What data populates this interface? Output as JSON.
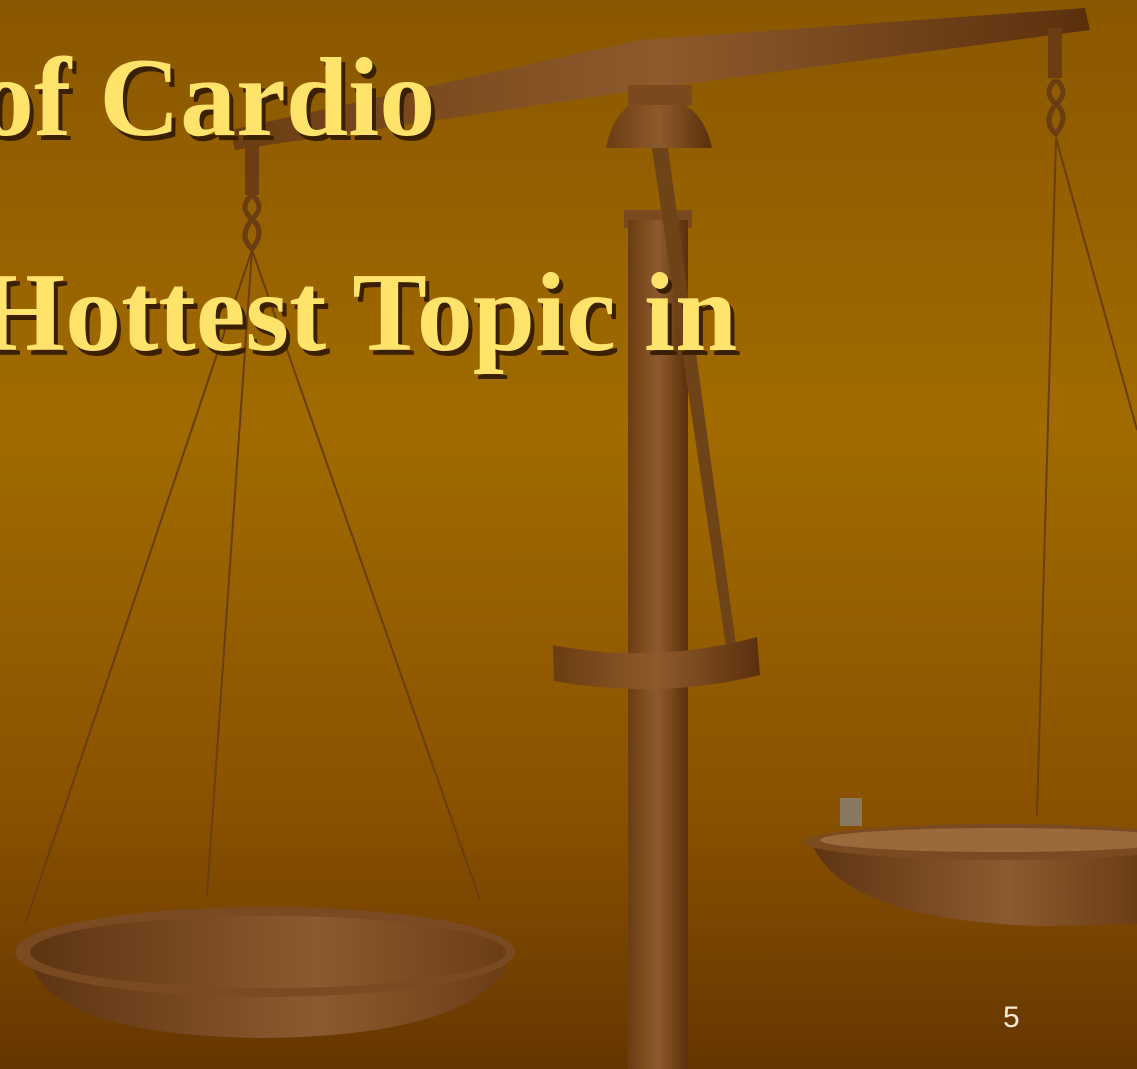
{
  "slide": {
    "title_lines": [
      "of Cardio",
      "Hottest Topic in"
    ],
    "page_number": "5"
  }
}
